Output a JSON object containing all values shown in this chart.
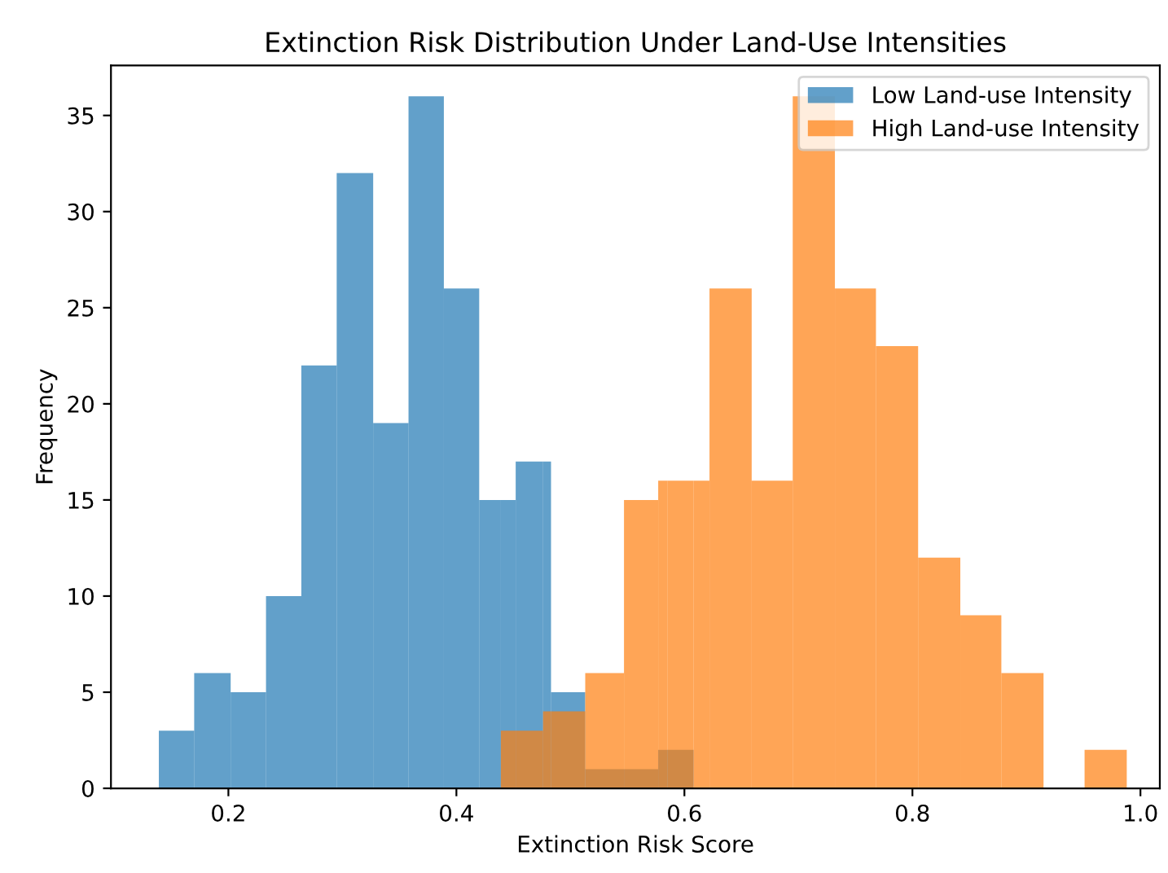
{
  "chart_data": {
    "type": "histogram",
    "title": "Extinction Risk Distribution Under Land-Use Intensities",
    "xlabel": "Extinction Risk Score",
    "ylabel": "Frequency",
    "bins": [
      0.139,
      0.17,
      0.202,
      0.233,
      0.264,
      0.295,
      0.327,
      0.358,
      0.389,
      0.42,
      0.439,
      0.452,
      0.476,
      0.483,
      0.513,
      0.547,
      0.577,
      0.585,
      0.608,
      0.622,
      0.659,
      0.695,
      0.732,
      0.768,
      0.805,
      0.842,
      0.878,
      0.915,
      0.951,
      0.988
    ],
    "series": [
      {
        "name": "Low Land-use Intensity",
        "color": "#1f77b4",
        "values": [
          3,
          6,
          5,
          10,
          22,
          32,
          19,
          36,
          26,
          15,
          15,
          17,
          17,
          5,
          1,
          1,
          2,
          2,
          null,
          null,
          null,
          null,
          null,
          null,
          null,
          null,
          null,
          null,
          null
        ]
      },
      {
        "name": "High Land-use Intensity",
        "color": "#ff7f0e",
        "values": [
          null,
          null,
          null,
          null,
          null,
          null,
          null,
          null,
          null,
          null,
          3,
          3,
          4,
          4,
          6,
          15,
          16,
          16,
          16,
          26,
          16,
          36,
          26,
          23,
          12,
          9,
          6,
          0,
          2
        ]
      }
    ],
    "xlim": [
      0.097,
      1.017
    ],
    "ylim": [
      0,
      37.6
    ],
    "xticks": [
      {
        "value": 0.2,
        "label": "0.2"
      },
      {
        "value": 0.4,
        "label": "0.4"
      },
      {
        "value": 0.6,
        "label": "0.6"
      },
      {
        "value": 0.8,
        "label": "0.8"
      },
      {
        "value": 1.0,
        "label": "1.0"
      }
    ],
    "yticks": [
      0,
      5,
      10,
      15,
      20,
      25,
      30,
      35
    ],
    "legend": "top right"
  }
}
